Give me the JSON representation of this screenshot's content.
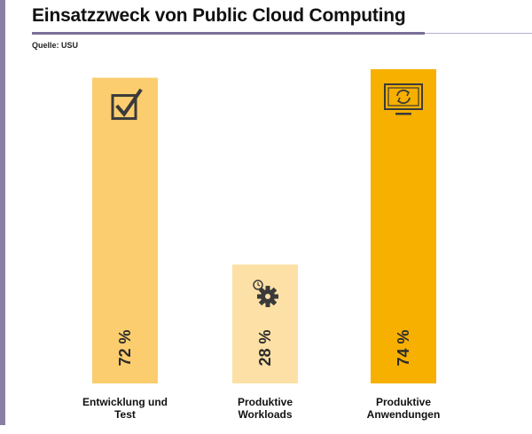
{
  "header": {
    "title": "Einsatzzweck von Public Cloud Computing",
    "source": "Quelle: USU"
  },
  "colors": {
    "accent": "#7a7098",
    "bars": [
      "#fbcd6e",
      "#fde0a6",
      "#f7b000"
    ]
  },
  "chart_data": {
    "type": "bar",
    "title": "Einsatzzweck von Public Cloud Computing",
    "xlabel": "",
    "ylabel": "",
    "categories": [
      [
        "Entwicklung und",
        "Test"
      ],
      [
        "Produktive",
        "Workloads"
      ],
      [
        "Produktive",
        "Anwendungen"
      ]
    ],
    "values": [
      72,
      28,
      74
    ],
    "value_labels": [
      "72 %",
      "28 %",
      "74 %"
    ],
    "icons": [
      "checkbox-icon",
      "gear-clock-icon",
      "monitor-refresh-icon"
    ],
    "ylim": [
      0,
      74
    ],
    "grid": false,
    "legend": "none"
  }
}
